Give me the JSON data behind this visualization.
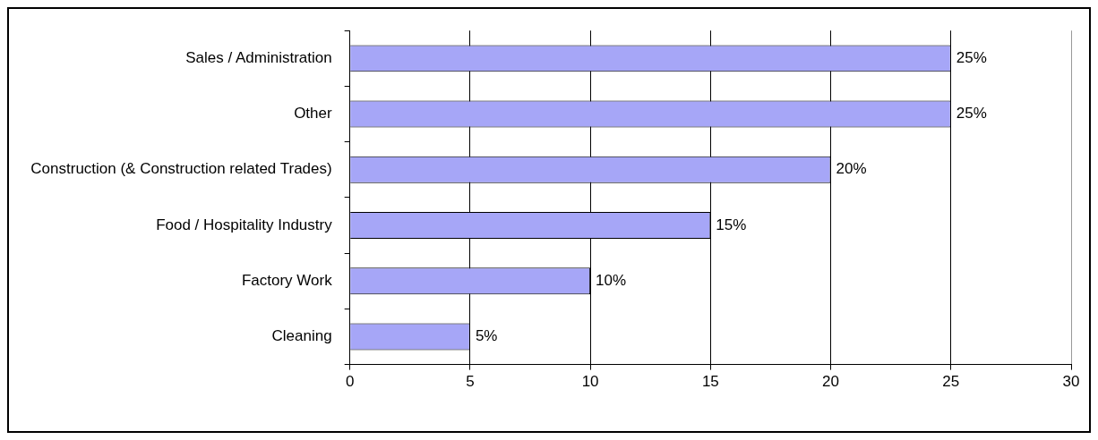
{
  "chart_data": {
    "type": "bar",
    "orientation": "horizontal",
    "categories": [
      "Sales / Administration",
      "Other",
      "Construction (& Construction related Trades)",
      "Food / Hospitality Industry",
      "Factory Work",
      "Cleaning"
    ],
    "values": [
      25,
      25,
      20,
      15,
      10,
      5
    ],
    "value_labels": [
      "25%",
      "25%",
      "20%",
      "15%",
      "10%",
      "5%"
    ],
    "color": "#a6a6f7",
    "xlim": [
      0,
      30
    ],
    "xticks": [
      0,
      5,
      10,
      15,
      20,
      25,
      30
    ],
    "grid": "x",
    "legend": false
  }
}
